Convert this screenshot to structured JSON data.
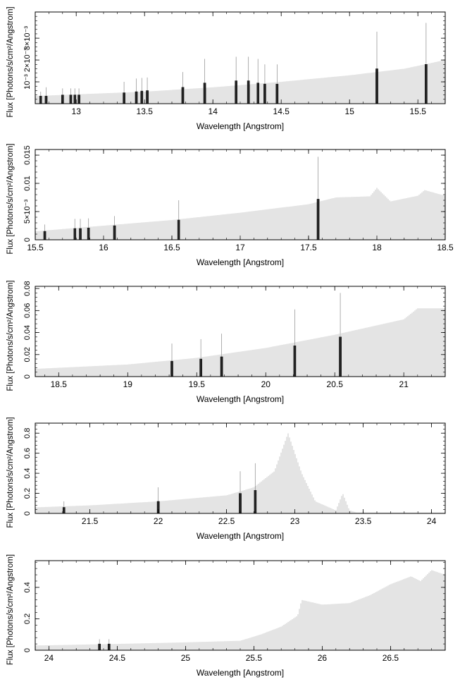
{
  "chart_data": [
    {
      "type": "bar",
      "xlabel": "Wavelength [Angstrom]",
      "ylabel": "Flux [Photons/s/cm²/Angstrom]",
      "xlim": [
        12.7,
        15.7
      ],
      "ylim": [
        0,
        0.0042
      ],
      "xticks": [
        13,
        13.5,
        14,
        14.5,
        15,
        15.5
      ],
      "xtick_labels": [
        "13",
        "13.5",
        "14",
        "14.5",
        "15",
        "15.5"
      ],
      "yticks": [
        0.001,
        0.002,
        0.003
      ],
      "ytick_labels": [
        "10⁻³",
        "2×10⁻³",
        "3×10⁻³"
      ],
      "continuum": [
        [
          12.7,
          0.00035
        ],
        [
          13.5,
          0.00055
        ],
        [
          14.0,
          0.00075
        ],
        [
          14.5,
          0.001
        ],
        [
          15.0,
          0.0013
        ],
        [
          15.4,
          0.0016
        ],
        [
          15.7,
          0.002
        ]
      ],
      "series": [
        {
          "name": "",
          "x": [
            12.74,
            12.78,
            12.9,
            12.96,
            12.99,
            13.02,
            13.35,
            13.44,
            13.48,
            13.52,
            13.78,
            13.94,
            14.17,
            14.26,
            14.33,
            14.38,
            14.47,
            15.2,
            15.56
          ],
          "values": [
            0.00035,
            0.00035,
            0.0004,
            0.0004,
            0.0004,
            0.0004,
            0.0005,
            0.00055,
            0.00058,
            0.0006,
            0.00075,
            0.00095,
            0.00105,
            0.00105,
            0.00095,
            0.0009,
            0.0009,
            0.0016,
            0.0018
          ],
          "errors": [
            0.0002,
            0.0004,
            0.0003,
            0.0003,
            0.0003,
            0.0003,
            0.0005,
            0.0006,
            0.0006,
            0.0006,
            0.0007,
            0.0011,
            0.0011,
            0.0011,
            0.0011,
            0.0009,
            0.0009,
            0.0017,
            0.0019
          ]
        }
      ]
    },
    {
      "type": "bar",
      "xlabel": "Wavelength [Angstrom]",
      "ylabel": "Flux [Photons/s/cm²/Angstrom]",
      "xlim": [
        15.5,
        18.5
      ],
      "ylim": [
        0,
        0.016
      ],
      "xticks": [
        15.5,
        16,
        16.5,
        17,
        17.5,
        18,
        18.5
      ],
      "xtick_labels": [
        "15.5",
        "16",
        "16.5",
        "17",
        "17.5",
        "18",
        "18.5"
      ],
      "yticks": [
        0,
        0.005,
        0.01,
        0.015
      ],
      "ytick_labels": [
        "0",
        "5×10⁻³",
        "0.01",
        "0.015"
      ],
      "continuum": [
        [
          15.5,
          0.0015
        ],
        [
          16.0,
          0.0025
        ],
        [
          16.5,
          0.0035
        ],
        [
          17.0,
          0.0048
        ],
        [
          17.5,
          0.0063
        ],
        [
          17.7,
          0.0075
        ],
        [
          17.95,
          0.0077
        ],
        [
          18.0,
          0.0092
        ],
        [
          18.1,
          0.0068
        ],
        [
          18.3,
          0.0078
        ],
        [
          18.35,
          0.0088
        ],
        [
          18.5,
          0.0078
        ]
      ],
      "series": [
        {
          "name": "",
          "x": [
            15.57,
            15.79,
            15.83,
            15.89,
            16.08,
            16.55,
            17.57
          ],
          "values": [
            0.0015,
            0.002,
            0.002,
            0.0021,
            0.0025,
            0.0035,
            0.0072
          ],
          "errors": [
            0.0012,
            0.0017,
            0.0017,
            0.0017,
            0.0017,
            0.0035,
            0.0075
          ]
        }
      ]
    },
    {
      "type": "bar",
      "xlabel": "Wavelength [Angstrom]",
      "ylabel": "Flux [Photons/s/cm²/Angstrom]",
      "xlim": [
        18.33,
        21.3
      ],
      "ylim": [
        0,
        0.082
      ],
      "xticks": [
        18.5,
        19,
        19.5,
        20,
        20.5,
        21
      ],
      "xtick_labels": [
        "18.5",
        "19",
        "19.5",
        "20",
        "20.5",
        "21"
      ],
      "yticks": [
        0,
        0.02,
        0.04,
        0.06,
        0.08
      ],
      "ytick_labels": [
        "0",
        "0.02",
        "0.04",
        "0.06",
        "0.08"
      ],
      "continuum": [
        [
          18.33,
          0.007
        ],
        [
          18.5,
          0.008
        ],
        [
          19.0,
          0.011
        ],
        [
          19.5,
          0.017
        ],
        [
          20.0,
          0.026
        ],
        [
          20.5,
          0.038
        ],
        [
          21.0,
          0.052
        ],
        [
          21.1,
          0.062
        ],
        [
          21.3,
          0.062
        ]
      ],
      "series": [
        {
          "name": "",
          "x": [
            19.32,
            19.53,
            19.68,
            20.21,
            20.54
          ],
          "values": [
            0.014,
            0.016,
            0.018,
            0.028,
            0.036
          ],
          "errors": [
            0.016,
            0.018,
            0.021,
            0.033,
            0.04
          ]
        }
      ]
    },
    {
      "type": "bar",
      "xlabel": "Wavelength [Angstrom]",
      "ylabel": "Flux [Photons/s/cm²/Angstrom]",
      "xlim": [
        21.1,
        24.1
      ],
      "ylim": [
        0,
        0.9
      ],
      "xticks": [
        21.5,
        22,
        22.5,
        23,
        23.5,
        24
      ],
      "xtick_labels": [
        "21.5",
        "22",
        "22.5",
        "23",
        "23.5",
        "24"
      ],
      "yticks": [
        0,
        0.2,
        0.4,
        0.6,
        0.8
      ],
      "ytick_labels": [
        "0",
        "0.2",
        "0.4",
        "0.6",
        "0.8"
      ],
      "continuum": [
        [
          21.1,
          0.06
        ],
        [
          21.5,
          0.08
        ],
        [
          22.0,
          0.12
        ],
        [
          22.5,
          0.18
        ],
        [
          22.7,
          0.26
        ],
        [
          22.85,
          0.42
        ],
        [
          22.95,
          0.8
        ],
        [
          23.05,
          0.4
        ],
        [
          23.15,
          0.12
        ],
        [
          23.3,
          0.03
        ],
        [
          23.35,
          0.2
        ],
        [
          23.4,
          0.03
        ],
        [
          23.45,
          0.01
        ],
        [
          24.1,
          0.01
        ]
      ],
      "series": [
        {
          "name": "",
          "x": [
            21.31,
            22.0,
            22.6,
            22.71
          ],
          "values": [
            0.06,
            0.12,
            0.2,
            0.23
          ],
          "errors": [
            0.06,
            0.14,
            0.22,
            0.27
          ]
        }
      ]
    },
    {
      "type": "bar",
      "xlabel": "Wavelength [Angstrom]",
      "ylabel": "Flux [Photons/s/cm²/Angstrom]",
      "xlim": [
        23.9,
        26.9
      ],
      "ylim": [
        0,
        0.57
      ],
      "xticks": [
        24,
        24.5,
        25,
        25.5,
        26,
        26.5
      ],
      "xtick_labels": [
        "24",
        "24.5",
        "25",
        "25.5",
        "26",
        "26.5"
      ],
      "yticks": [
        0,
        0.2,
        0.4
      ],
      "ytick_labels": [
        "0",
        "0.2",
        "0.4"
      ],
      "continuum": [
        [
          23.9,
          0.03
        ],
        [
          24.5,
          0.04
        ],
        [
          25.0,
          0.05
        ],
        [
          25.4,
          0.06
        ],
        [
          25.55,
          0.1
        ],
        [
          25.7,
          0.15
        ],
        [
          25.82,
          0.22
        ],
        [
          25.85,
          0.32
        ],
        [
          26.0,
          0.29
        ],
        [
          26.2,
          0.3
        ],
        [
          26.35,
          0.35
        ],
        [
          26.5,
          0.42
        ],
        [
          26.65,
          0.47
        ],
        [
          26.72,
          0.44
        ],
        [
          26.8,
          0.51
        ],
        [
          26.9,
          0.48
        ]
      ],
      "series": [
        {
          "name": "",
          "x": [
            24.37,
            24.44
          ],
          "values": [
            0.04,
            0.04
          ],
          "errors": [
            0.03,
            0.03
          ]
        }
      ]
    }
  ]
}
